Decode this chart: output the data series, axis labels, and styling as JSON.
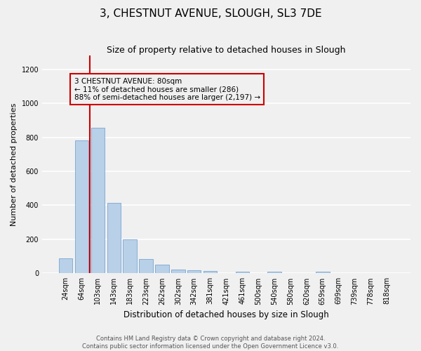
{
  "title": "3, CHESTNUT AVENUE, SLOUGH, SL3 7DE",
  "subtitle": "Size of property relative to detached houses in Slough",
  "xlabel": "Distribution of detached houses by size in Slough",
  "ylabel": "Number of detached properties",
  "categories": [
    "24sqm",
    "64sqm",
    "103sqm",
    "143sqm",
    "183sqm",
    "223sqm",
    "262sqm",
    "302sqm",
    "342sqm",
    "381sqm",
    "421sqm",
    "461sqm",
    "500sqm",
    "540sqm",
    "580sqm",
    "620sqm",
    "659sqm",
    "699sqm",
    "739sqm",
    "778sqm",
    "818sqm"
  ],
  "values": [
    90,
    780,
    855,
    415,
    200,
    85,
    52,
    22,
    18,
    15,
    0,
    12,
    0,
    12,
    0,
    0,
    12,
    0,
    0,
    0,
    0
  ],
  "bar_color": "#b8d0e8",
  "bar_edge_color": "#6699cc",
  "bar_width": 0.85,
  "ylim": [
    0,
    1280
  ],
  "yticks": [
    0,
    200,
    400,
    600,
    800,
    1000,
    1200
  ],
  "vline_color": "#cc0000",
  "annotation_text": "3 CHESTNUT AVENUE: 80sqm\n← 11% of detached houses are smaller (286)\n88% of semi-detached houses are larger (2,197) →",
  "annotation_box_color": "#cc0000",
  "background_color": "#f0f0f0",
  "grid_color": "#ffffff",
  "footer_text": "Contains HM Land Registry data © Crown copyright and database right 2024.\nContains public sector information licensed under the Open Government Licence v3.0.",
  "title_fontsize": 11,
  "subtitle_fontsize": 9,
  "ylabel_fontsize": 8,
  "xlabel_fontsize": 8.5,
  "tick_fontsize": 7,
  "annotation_fontsize": 7.5,
  "footer_fontsize": 6
}
